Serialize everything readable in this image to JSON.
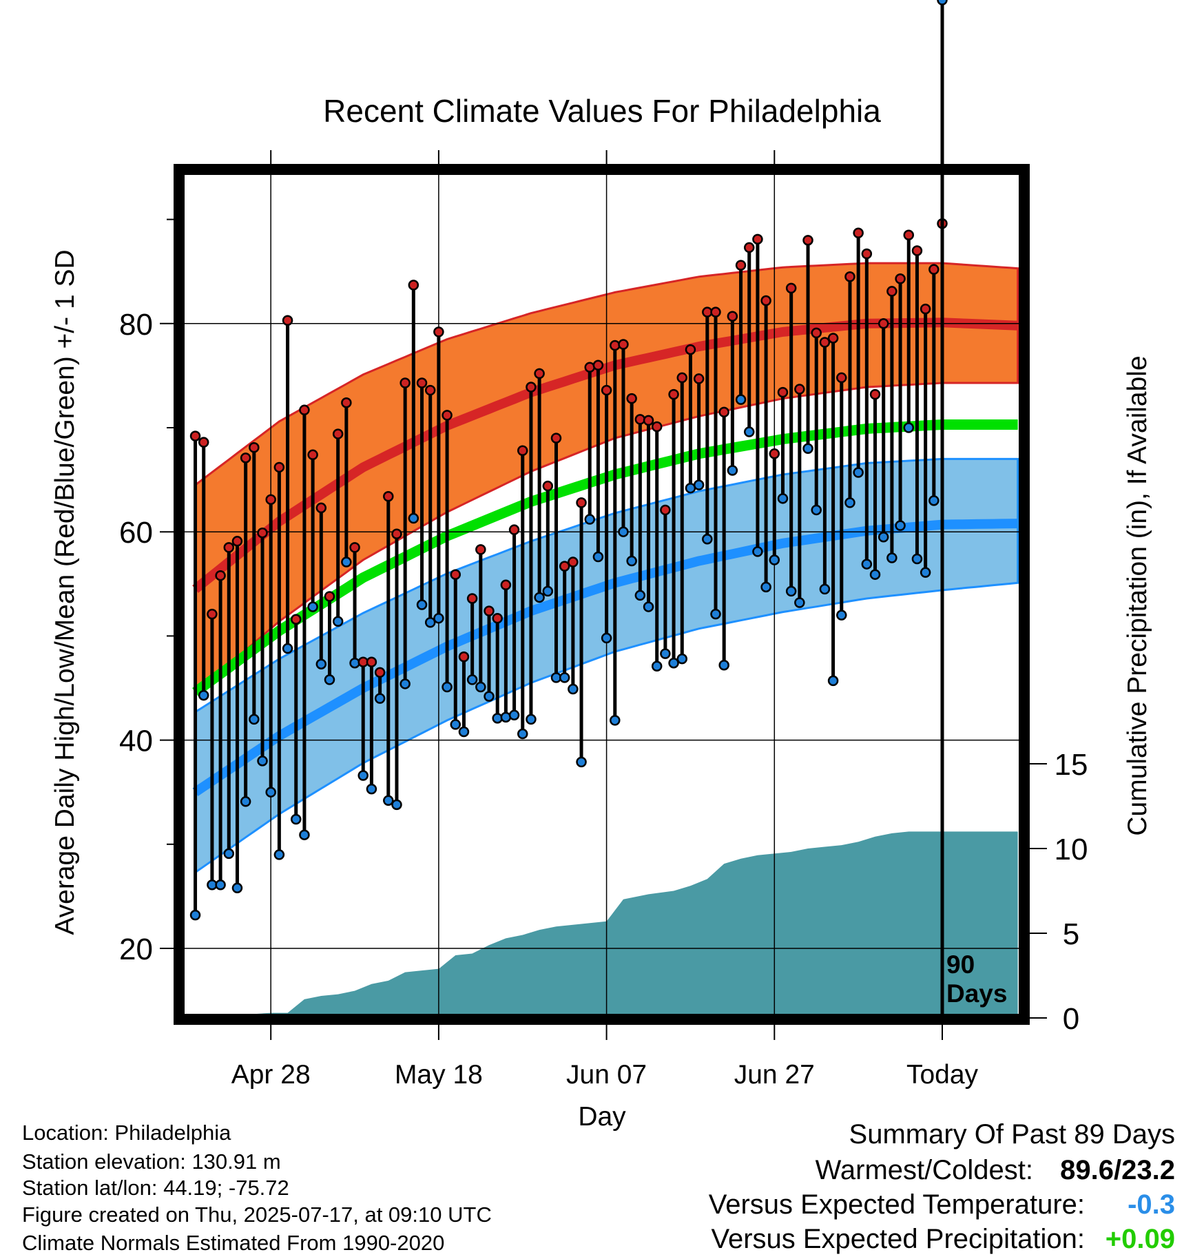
{
  "title": "Recent Climate Values For Philadelphia",
  "chart_data": {
    "type": "line",
    "title": "Recent Climate Values For Philadelphia",
    "xlabel": "Day",
    "ylabel": "Average Daily High/Low/Mean (Red/Blue/Green) +/- 1 SD",
    "y2label": "Cumulative Precipitation (in), If Available",
    "x_range_days": [
      -89,
      9
    ],
    "ylim": [
      13,
      96
    ],
    "y_ticks": [
      20,
      40,
      60,
      80
    ],
    "y_tick_labels": [
      "20",
      "40",
      "60",
      "80"
    ],
    "y2lim": [
      0,
      40
    ],
    "y2_ticks": [
      0,
      5,
      10,
      15
    ],
    "y2_tick_labels": [
      "0",
      "5",
      "10",
      "15"
    ],
    "x_ticks": [
      {
        "day": -80,
        "label": "Apr 28"
      },
      {
        "day": -60,
        "label": "May 18"
      },
      {
        "day": -40,
        "label": "Jun 07"
      },
      {
        "day": -20,
        "label": "Jun 27"
      },
      {
        "day": 0,
        "label": "Today"
      }
    ],
    "today_label_line1": "90",
    "today_label_line2": "Days",
    "grid": true,
    "normals": {
      "days": [
        -89,
        -79,
        -69,
        -59,
        -49,
        -39,
        -29,
        -19,
        -9,
        0,
        9
      ],
      "high_mean": [
        54.5,
        61.0,
        66.2,
        70.2,
        73.4,
        76.0,
        77.8,
        79.2,
        80.0,
        80.1,
        79.8
      ],
      "high_upper": [
        64.5,
        70.6,
        75.1,
        78.5,
        81.0,
        83.0,
        84.5,
        85.4,
        85.8,
        85.8,
        85.3
      ],
      "high_lower": [
        44.5,
        51.4,
        57.3,
        61.9,
        65.8,
        69.0,
        71.1,
        72.8,
        73.9,
        74.3,
        74.3
      ],
      "mean": [
        44.6,
        50.5,
        55.6,
        59.6,
        62.9,
        65.5,
        67.5,
        68.9,
        69.9,
        70.3,
        70.3
      ],
      "low_mean": [
        35.0,
        40.4,
        45.0,
        49.0,
        52.4,
        55.1,
        57.2,
        58.9,
        60.1,
        60.7,
        60.8
      ],
      "low_upper": [
        42.7,
        47.8,
        52.2,
        56.0,
        59.1,
        61.8,
        63.9,
        65.5,
        66.6,
        67.0,
        67.0
      ],
      "low_lower": [
        27.3,
        32.9,
        37.8,
        41.9,
        45.5,
        48.5,
        50.7,
        52.3,
        53.6,
        54.4,
        55.1
      ]
    },
    "series": [
      {
        "name": "High",
        "values": [
          69.2,
          68.6,
          52.1,
          55.8,
          58.5,
          59.1,
          67.1,
          68.1,
          59.9,
          63.1,
          66.2,
          80.3,
          51.6,
          71.7,
          67.4,
          62.3,
          53.8,
          69.4,
          72.4,
          58.5,
          47.5,
          47.5,
          46.5,
          63.4,
          59.8,
          74.3,
          83.7,
          74.3,
          73.6,
          79.2,
          71.2,
          55.9,
          48.0,
          53.6,
          58.3,
          52.4,
          51.7,
          54.9,
          60.2,
          67.8,
          73.9,
          75.2,
          64.4,
          69.0,
          56.7,
          57.1,
          62.8,
          75.8,
          76.0,
          73.6,
          77.9,
          78.0,
          72.8,
          70.8,
          70.7,
          70.1,
          62.1,
          73.2,
          74.8,
          77.5,
          74.7,
          81.1,
          81.1,
          71.5,
          80.7,
          85.6,
          87.3,
          88.1,
          82.2,
          67.5,
          73.4,
          83.4,
          73.7,
          88.0,
          79.1,
          78.2,
          78.6,
          74.8,
          84.5,
          88.7,
          86.7,
          73.2,
          80.0,
          83.1,
          84.3,
          88.5,
          87.0,
          81.4,
          85.2,
          89.6
        ]
      },
      {
        "name": "Low",
        "values": [
          23.2,
          44.3,
          26.1,
          26.1,
          29.1,
          25.8,
          34.1,
          42.0,
          38.0,
          35.0,
          29.0,
          48.8,
          32.4,
          30.9,
          52.8,
          47.3,
          45.8,
          51.4,
          57.1,
          47.4,
          36.6,
          35.3,
          44.0,
          34.2,
          33.8,
          45.4,
          61.3,
          53.0,
          51.3,
          51.7,
          45.1,
          41.5,
          40.8,
          45.8,
          45.1,
          44.2,
          42.1,
          42.2,
          42.4,
          40.6,
          42.0,
          53.7,
          54.3,
          46.0,
          46.0,
          44.9,
          37.9,
          61.2,
          57.6,
          49.8,
          41.9,
          60.0,
          57.2,
          53.9,
          52.8,
          47.1,
          48.3,
          47.4,
          47.8,
          64.2,
          64.5,
          59.3,
          52.1,
          47.2,
          65.9,
          72.7,
          69.6,
          58.1,
          54.7,
          57.3,
          63.2,
          54.3,
          53.2,
          68.0,
          62.1,
          54.5,
          45.7,
          52.0,
          62.8,
          65.7,
          56.9,
          55.9,
          59.5,
          57.5,
          60.6,
          70.0,
          57.4,
          56.1,
          63.0
        ]
      }
    ],
    "precip": {
      "days": [
        -89,
        -80,
        -78,
        -76,
        -74,
        -72,
        -70,
        -68,
        -66,
        -64,
        -62,
        -60,
        -58,
        -56,
        -54,
        -52,
        -50,
        -48,
        -46,
        -44,
        -42,
        -40,
        -38,
        -35,
        -32,
        -30,
        -28,
        -26,
        -24,
        -22,
        -18,
        -16,
        -14,
        -12,
        -10,
        -8,
        -6,
        -4,
        -2,
        0,
        9
      ],
      "cumulative": [
        0.0,
        0.3,
        0.3,
        1.1,
        1.3,
        1.4,
        1.6,
        2.0,
        2.2,
        2.7,
        2.8,
        2.9,
        3.7,
        3.8,
        4.3,
        4.7,
        4.9,
        5.2,
        5.4,
        5.5,
        5.6,
        5.7,
        7.0,
        7.3,
        7.5,
        7.8,
        8.2,
        9.1,
        9.4,
        9.6,
        9.8,
        10.0,
        10.1,
        10.2,
        10.4,
        10.7,
        10.9,
        11.0,
        11.0,
        11.0,
        11.0
      ]
    },
    "colors": {
      "high_band": "#f47a2e",
      "high_line": "#d62526",
      "mean_line": "#00e000",
      "low_band": "#80c0e8",
      "low_line": "#1e90ff",
      "precip_fill": "#4a9aa4",
      "high_dot": "#cc2222",
      "low_dot": "#1e7fd8"
    }
  },
  "info": {
    "location": "Location: Philadelphia",
    "elevation": "Station elevation: 130.91 m",
    "latlon": "Station lat/lon: 44.19; -75.72",
    "created": "Figure created on Thu, 2025-07-17, at 09:10 UTC",
    "normals": "Climate Normals Estimated From 1990-2020"
  },
  "summary": {
    "heading": "Summary Of Past 89 Days",
    "warm_cold_label": "Warmest/Coldest:",
    "warm_cold_value": "89.6/23.2",
    "temp_label": "Versus Expected Temperature:",
    "temp_value": "-0.3",
    "temp_color": "#2a8ee8",
    "precip_label": "Versus Expected Precipitation:",
    "precip_value": "+0.09",
    "precip_color": "#22cc00"
  }
}
